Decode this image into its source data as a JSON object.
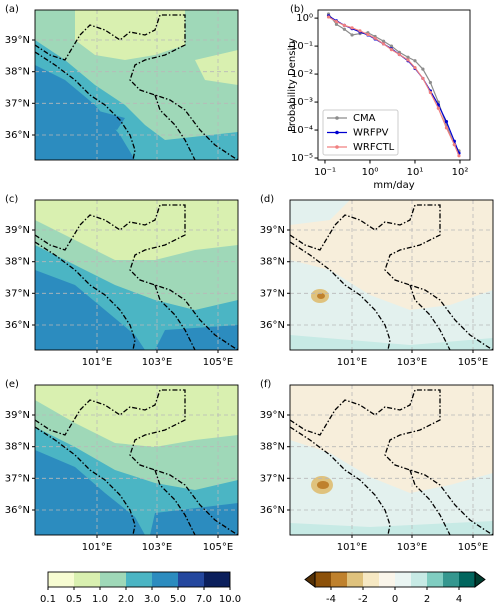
{
  "panels": [
    {
      "label": "(a)",
      "lat_labels": [
        "39°N",
        "38°N",
        "37°N",
        "36°N"
      ]
    },
    {
      "label": "(c)",
      "lat_labels": [
        "39°N",
        "38°N",
        "37°N",
        "36°N"
      ],
      "lon_labels": [
        "101°E",
        "103°E",
        "105°E"
      ]
    },
    {
      "label": "(d)",
      "lat_labels": [
        "39°N",
        "38°N",
        "37°N",
        "36°N"
      ],
      "lon_labels": [
        "101°E",
        "103°E",
        "105°E"
      ]
    },
    {
      "label": "(e)",
      "lat_labels": [
        "39°N",
        "38°N",
        "37°N",
        "36°N"
      ],
      "lon_labels": [
        "101°E",
        "103°E",
        "105°E"
      ]
    },
    {
      "label": "(f)",
      "lat_labels": [
        "39°N",
        "38°N",
        "37°N",
        "36°N"
      ],
      "lon_labels": [
        "101°E",
        "103°E",
        "105°E"
      ]
    }
  ],
  "chart_data": {
    "type": "line",
    "panel_label": "(b)",
    "x_label": "mm/day",
    "y_label": "Probability Density",
    "log_x": true,
    "log_y": true,
    "legend": "lower left",
    "x": [
      0.12,
      0.18,
      0.27,
      0.4,
      0.6,
      0.9,
      1.3,
      2,
      3,
      4.5,
      7,
      10,
      15,
      22,
      33,
      50,
      75,
      95
    ],
    "series": [
      {
        "name": "CMA",
        "color": "#8c8c8c",
        "values": [
          1.4,
          0.6,
          0.4,
          0.25,
          0.28,
          0.3,
          0.22,
          0.15,
          0.1,
          0.06,
          0.04,
          0.03,
          0.015,
          0.005,
          0.001,
          0.00015,
          3e-05,
          1.8e-05
        ]
      },
      {
        "name": "WRFPV",
        "color": "#0000d0",
        "values": [
          1.2,
          0.8,
          0.55,
          0.42,
          0.32,
          0.25,
          0.18,
          0.12,
          0.08,
          0.05,
          0.03,
          0.016,
          0.007,
          0.0025,
          0.0008,
          0.0002,
          4e-05,
          1.5e-05
        ]
      },
      {
        "name": "WRFCTL",
        "color": "#f08080",
        "values": [
          1.1,
          0.75,
          0.55,
          0.45,
          0.35,
          0.26,
          0.19,
          0.12,
          0.075,
          0.05,
          0.032,
          0.017,
          0.007,
          0.0022,
          0.0006,
          0.00012,
          3e-05,
          1.2e-05
        ]
      }
    ],
    "xlim": [
      0.07,
      167
    ],
    "ylim": [
      8.5e-06,
      1.95
    ],
    "xticks": [
      {
        "value": 0.1,
        "label": "10⁻¹"
      },
      {
        "value": 1,
        "label": "10⁰"
      },
      {
        "value": 10,
        "label": "10¹"
      },
      {
        "value": 100,
        "label": "10²"
      }
    ],
    "yticks": [
      {
        "value": 1e-05,
        "label": "10⁻⁵"
      },
      {
        "value": 0.0001,
        "label": "10⁻⁴"
      },
      {
        "value": 0.001,
        "label": "10⁻³"
      },
      {
        "value": 0.01,
        "label": "10⁻²"
      },
      {
        "value": 0.1,
        "label": "10⁻¹"
      },
      {
        "value": 1,
        "label": "10⁰"
      }
    ]
  },
  "colorbars": [
    {
      "ticks": [
        0.1,
        0.5,
        {
          "value": 1,
          "label": "1.0"
        },
        {
          "value": 2,
          "label": "2.0"
        },
        {
          "value": 3,
          "label": "3.0"
        },
        {
          "value": 5,
          "label": "5.0"
        },
        {
          "value": 7,
          "label": "7.0"
        },
        {
          "value": 10,
          "label": "10.0"
        }
      ],
      "colors": [
        "#f7fcd2",
        "#d9f0b0",
        "#9fd8b8",
        "#4bb5c4",
        "#2c8cbf",
        "#24479e",
        "#0b1f5c"
      ]
    },
    {
      "vlim": [
        -5,
        5
      ],
      "ticks": [
        -4,
        -2,
        0,
        2,
        4
      ],
      "colors": [
        "#8c510a",
        "#bf812d",
        "#dfc27d",
        "#f6e8c3",
        "#faf5ea",
        "#eaf5f3",
        "#c7eae5",
        "#80cdc1",
        "#35978f",
        "#01665e"
      ],
      "extend_colors": [
        "#543005",
        "#003c30"
      ]
    }
  ]
}
